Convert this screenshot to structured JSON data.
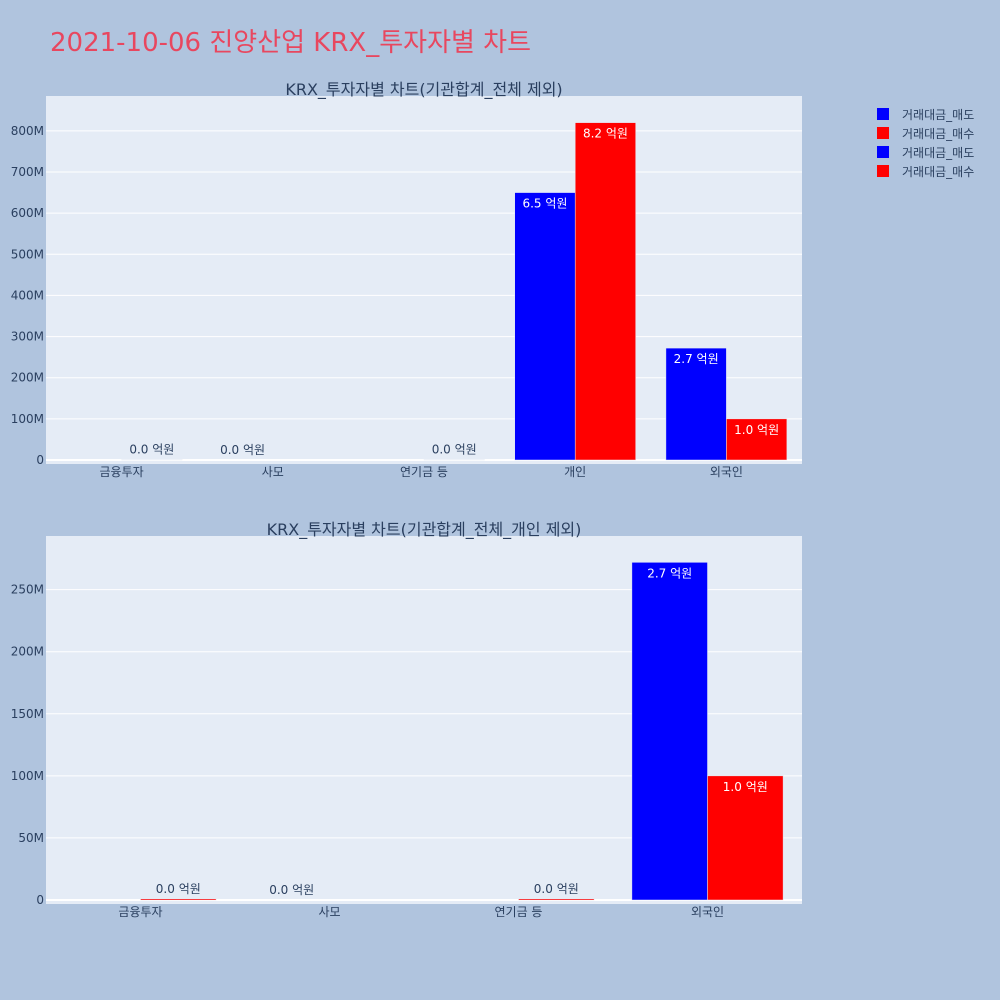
{
  "title": "2021-10-06 진양산업 KRX_투자자별 차트",
  "colors": {
    "sell": "#0000ff",
    "buy": "#ff0000",
    "title": "#e8475f"
  },
  "legend": [
    {
      "label": "거래대금_매도",
      "color": "#0000ff"
    },
    {
      "label": "거래대금_매수",
      "color": "#ff0000"
    },
    {
      "label": "거래대금_매도",
      "color": "#0000ff"
    },
    {
      "label": "거래대금_매수",
      "color": "#ff0000"
    }
  ],
  "chart_data": [
    {
      "type": "bar",
      "title": "KRX_투자자별 차트(기관합계_전체 제외)",
      "categories": [
        "금융투자",
        "사모",
        "연기금 등",
        "개인",
        "외국인"
      ],
      "series": [
        {
          "name": "거래대금_매도",
          "values": [
            0,
            0,
            0,
            650000000,
            272000000
          ],
          "labels": [
            "",
            "0.0 억원",
            "",
            "6.5 억원",
            "2.7 억원"
          ]
        },
        {
          "name": "거래대금_매수",
          "values": [
            1000000,
            0,
            1000000,
            820000000,
            100000000
          ],
          "labels": [
            "0.0 억원",
            "",
            "0.0 억원",
            "8.2 억원",
            "1.0 억원"
          ]
        }
      ],
      "ylim": [
        0,
        875000000
      ],
      "yticks": [
        0,
        100000000,
        200000000,
        300000000,
        400000000,
        500000000,
        600000000,
        700000000,
        800000000
      ],
      "ytick_labels": [
        "0",
        "100M",
        "200M",
        "300M",
        "400M",
        "500M",
        "600M",
        "700M",
        "800M"
      ],
      "xlabel": "",
      "ylabel": ""
    },
    {
      "type": "bar",
      "title": "KRX_투자자별 차트(기관합계_전체_개인 제외)",
      "categories": [
        "금융투자",
        "사모",
        "연기금 등",
        "외국인"
      ],
      "series": [
        {
          "name": "거래대금_매도",
          "values": [
            0,
            0,
            0,
            272000000
          ],
          "labels": [
            "",
            "0.0 억원",
            "",
            "2.7 억원"
          ]
        },
        {
          "name": "거래대금_매수",
          "values": [
            1000000,
            0,
            1000000,
            100000000
          ],
          "labels": [
            "0.0 억원",
            "",
            "0.0 억원",
            "1.0 억원"
          ]
        }
      ],
      "ylim": [
        0,
        290000000
      ],
      "yticks": [
        0,
        50000000,
        100000000,
        150000000,
        200000000,
        250000000
      ],
      "ytick_labels": [
        "0",
        "50M",
        "100M",
        "150M",
        "200M",
        "250M"
      ],
      "xlabel": "",
      "ylabel": ""
    }
  ]
}
